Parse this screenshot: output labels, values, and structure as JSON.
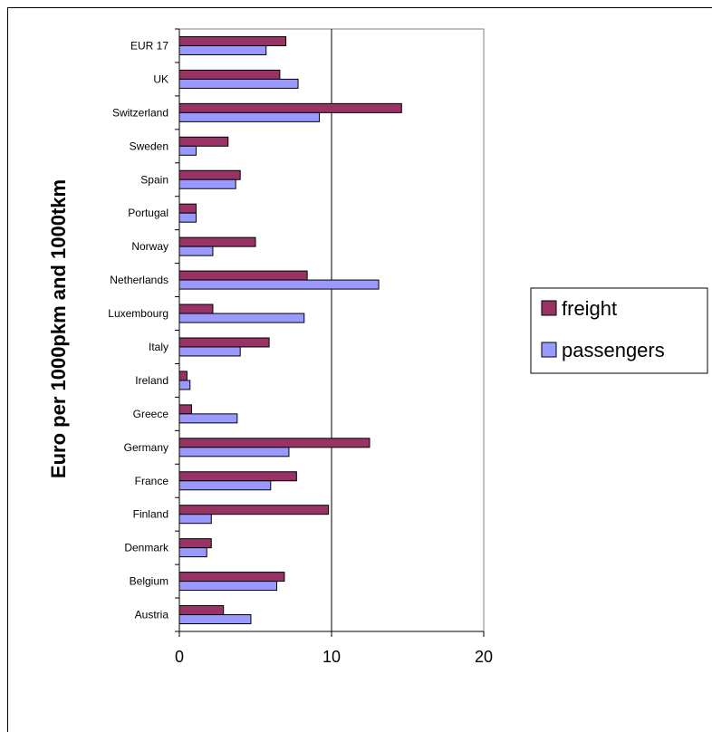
{
  "chart_data": {
    "type": "bar",
    "orientation": "horizontal",
    "title": "",
    "xlabel": "",
    "ylabel": "Euro per 1000pkm and 1000tkm",
    "xlim": [
      0,
      20
    ],
    "xticks": [
      0,
      10,
      20
    ],
    "grid": false,
    "legend_position": "right",
    "categories": [
      "EUR 17",
      "UK",
      "Switzerland",
      "Sweden",
      "Spain",
      "Portugal",
      "Norway",
      "Netherlands",
      "Luxembourg",
      "Italy",
      "Ireland",
      "Greece",
      "Germany",
      "France",
      "Finland",
      "Denmark",
      "Belgium",
      "Austria"
    ],
    "series": [
      {
        "name": "freight",
        "color": "#993366",
        "values": [
          7.0,
          6.6,
          14.6,
          3.2,
          4.0,
          1.1,
          5.0,
          8.4,
          2.2,
          5.9,
          0.5,
          0.8,
          12.5,
          7.7,
          9.8,
          2.1,
          6.9,
          2.9
        ]
      },
      {
        "name": "passengers",
        "color": "#9999FF",
        "values": [
          5.7,
          7.8,
          9.2,
          1.1,
          3.7,
          1.1,
          2.2,
          13.1,
          8.2,
          4.0,
          0.7,
          3.8,
          7.2,
          6.0,
          2.1,
          1.8,
          6.4,
          4.7
        ]
      }
    ]
  }
}
